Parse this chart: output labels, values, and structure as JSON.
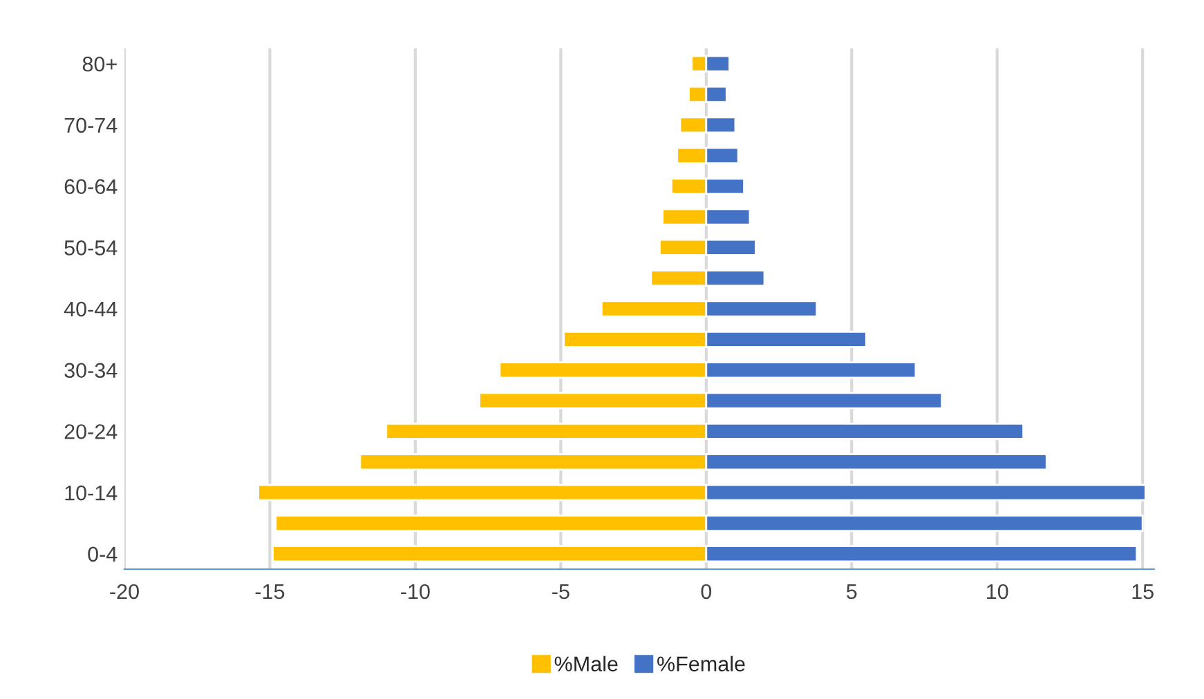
{
  "chart_data": {
    "type": "bar",
    "orientation": "horizontal",
    "categories": [
      "80+",
      null,
      "70-74",
      null,
      "60-64",
      null,
      "50-54",
      null,
      "40-44",
      null,
      "30-34",
      null,
      "20-24",
      null,
      "10-14",
      null,
      "0-4"
    ],
    "series": [
      {
        "name": "%Male",
        "color": "#ffc000",
        "values": [
          -0.5,
          -0.6,
          -0.9,
          -1.0,
          -1.2,
          -1.5,
          -1.6,
          -1.9,
          -3.6,
          -4.9,
          -7.1,
          -7.8,
          -11.0,
          -11.9,
          -15.4,
          -14.8,
          -14.9
        ]
      },
      {
        "name": "%Female",
        "color": "#4472c4",
        "values": [
          0.8,
          0.7,
          1.0,
          1.1,
          1.3,
          1.5,
          1.7,
          2.0,
          3.8,
          5.5,
          7.2,
          8.1,
          10.9,
          11.7,
          15.1,
          15.0,
          14.8
        ]
      }
    ],
    "xlim": [
      -20,
      15.4
    ],
    "xticks": [
      -20,
      -15,
      -10,
      -5,
      0,
      5,
      10,
      15
    ],
    "stacked": true,
    "grid": "x",
    "legend": "bottom"
  }
}
